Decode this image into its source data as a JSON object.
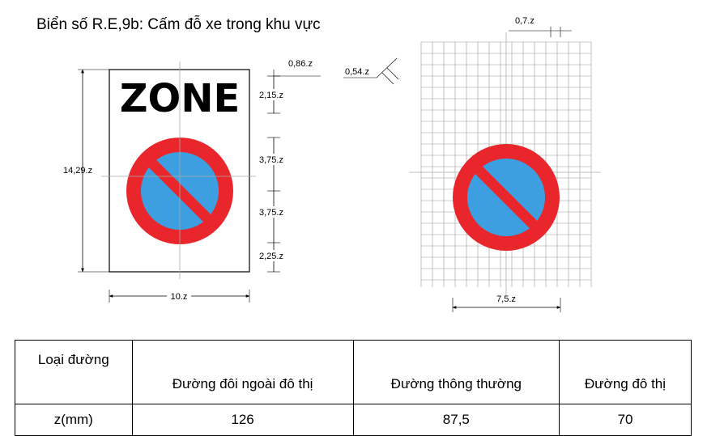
{
  "title": "Biển số R.E,9b: Cấm đỗ xe trong khu vực",
  "sign": {
    "zone_text": "ZONE",
    "outer_color": "#e8262b",
    "inner_color": "#3d9fe0"
  },
  "left_dims": {
    "height": "14,29.z",
    "top_margin": "0,86.z",
    "text_height": "2,15.z",
    "upper_half": "3,75.z",
    "lower_half": "3,75.z",
    "bottom_margin": "2,25.z",
    "width": "10.z"
  },
  "right_dims": {
    "grid_step": "0,7.z",
    "bar_width": "0,54.z",
    "diameter": "7,5.z"
  },
  "table": {
    "header": [
      "Loại đường",
      "Đường đôi ngoài đô thị",
      "Đường thông thường",
      "Đường đô thị"
    ],
    "row_label": "z(mm)",
    "values": [
      "126",
      "87,5",
      "70"
    ]
  }
}
